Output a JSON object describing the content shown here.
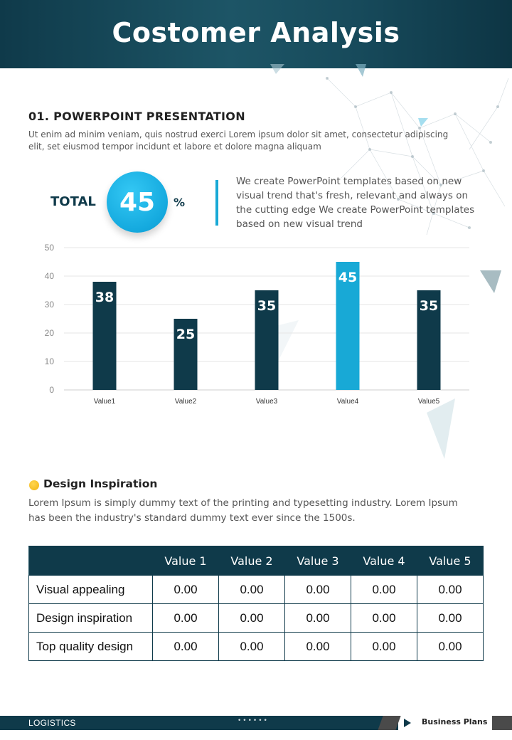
{
  "header": {
    "title": "Costomer Analysis"
  },
  "section1": {
    "title": "01.  POWERPOINT PRESENTATION",
    "text": "Ut enim ad minim veniam, quis nostrud exerci  Lorem ipsum dolor sit amet, consectetur adipiscing elit, set eiusmod tempor incidunt  et labore et dolore magna aliquam"
  },
  "total": {
    "label": "TOTAL",
    "value": "45",
    "unit": "%",
    "description": "We create PowerPoint templates based on new visual trend that's fresh, relevant and always on the cutting edge We create PowerPoint templates based on new visual trend"
  },
  "chart_data": {
    "type": "bar",
    "categories": [
      "Value1",
      "Value2",
      "Value3",
      "Value4",
      "Value5"
    ],
    "values": [
      38,
      25,
      35,
      45,
      35
    ],
    "ylim": [
      0,
      50
    ],
    "yticks": [
      0,
      10,
      20,
      30,
      40,
      50
    ],
    "grid": true,
    "data_labels": true,
    "bar_color": "#0f3a4a",
    "highlight_color": "#18a9d6",
    "highlight_index": 3
  },
  "design": {
    "title": "Design Inspiration",
    "text": "Lorem Ipsum is simply dummy text of the printing and typesetting industry. Lorem Ipsum has been the industry's standard dummy text ever since the 1500s."
  },
  "table": {
    "headers": [
      "",
      "Value 1",
      "Value 2",
      "Value 3",
      "Value 4",
      "Value 5"
    ],
    "rows": [
      {
        "label": "Visual appealing",
        "values": [
          "0.00",
          "0.00",
          "0.00",
          "0.00",
          "0.00"
        ]
      },
      {
        "label": "Design inspiration",
        "values": [
          "0.00",
          "0.00",
          "0.00",
          "0.00",
          "0.00"
        ]
      },
      {
        "label": "Top quality design",
        "values": [
          "0.00",
          "0.00",
          "0.00",
          "0.00",
          "0.00"
        ]
      }
    ]
  },
  "footer": {
    "left": "LOGISTICS",
    "dots": "••••••",
    "right": "Business Plans"
  },
  "colors": {
    "primary": "#0f3a4a",
    "accent": "#18a9d6",
    "bullet": "#f2b313"
  }
}
